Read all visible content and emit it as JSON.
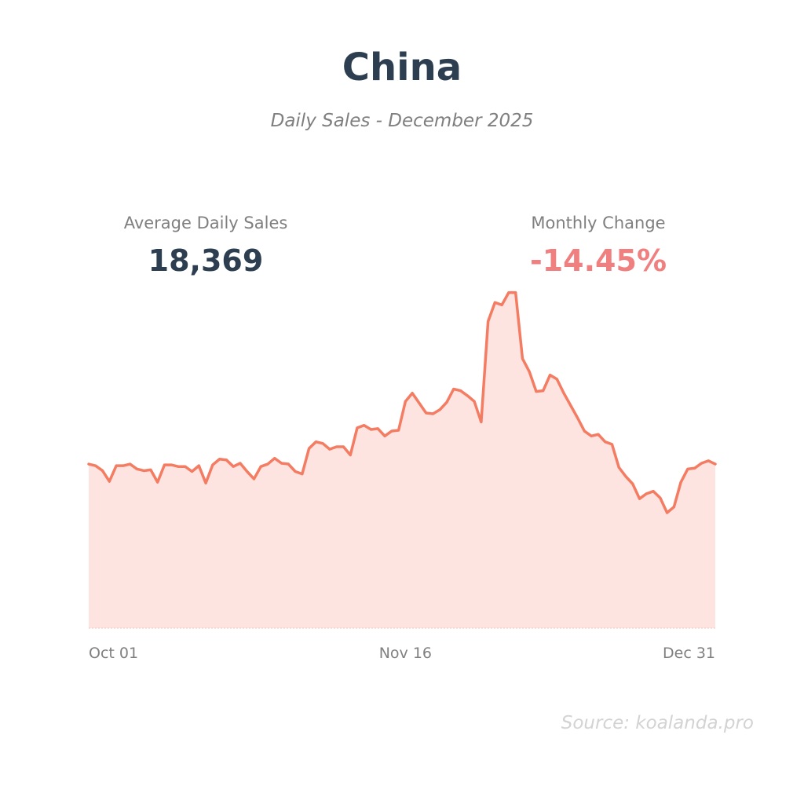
{
  "header": {
    "title": "China",
    "subtitle": "Daily Sales - December 2025"
  },
  "stats": {
    "avg_label": "Average Daily Sales",
    "avg_value": "18,369",
    "change_label": "Monthly Change",
    "change_value": "-14.45%"
  },
  "source": "Source: koalanda.pro",
  "colors": {
    "line": "#f47c62",
    "fill": "#fde4e0",
    "title": "#2c3e50",
    "negative": "#f08080",
    "muted": "#7f7f7f"
  },
  "chart_data": {
    "type": "area",
    "title": "",
    "xlabel": "",
    "ylabel": "",
    "x_start": "Oct 01",
    "x_end": "Dec 31",
    "ylim": [
      0,
      40000
    ],
    "grid": false,
    "x_tick_labels": [
      "Oct 01",
      "Nov 16",
      "Dec 31"
    ],
    "x_tick_index": [
      0,
      46,
      91
    ],
    "series": [
      {
        "values": [
          19900,
          19700,
          19100,
          17800,
          19700,
          19700,
          19900,
          19300,
          19100,
          19200,
          17700,
          19800,
          19800,
          19600,
          19600,
          19000,
          19700,
          17600,
          19800,
          20500,
          20400,
          19600,
          20000,
          19000,
          18100,
          19600,
          19900,
          20600,
          20000,
          19900,
          19000,
          18700,
          21800,
          22600,
          22400,
          21700,
          22000,
          22000,
          21000,
          24300,
          24600,
          24100,
          24200,
          23300,
          23900,
          24000,
          27500,
          28500,
          27300,
          26100,
          26000,
          26500,
          27400,
          29000,
          28800,
          28200,
          27500,
          25000,
          37200,
          39500,
          39200,
          40700,
          40700,
          32700,
          31100,
          28700,
          28800,
          30700,
          30200,
          28500,
          27000,
          25500,
          23900,
          23300,
          23500,
          22600,
          22300,
          19500,
          18400,
          17500,
          15700,
          16300,
          16600,
          15800,
          14000,
          14700,
          17700,
          19300,
          19400,
          20000,
          20300,
          19900
        ]
      }
    ]
  }
}
